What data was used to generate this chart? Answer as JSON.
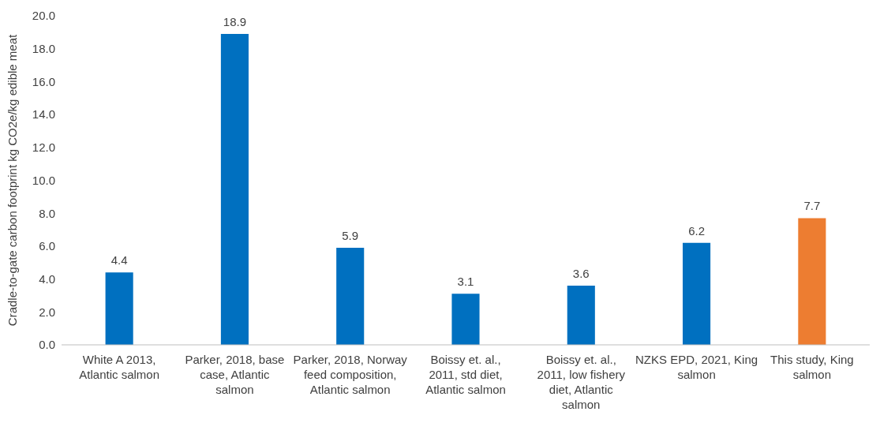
{
  "chart_data": {
    "type": "bar",
    "ylabel": "Cradle-to-gate carbon footprint kg CO2e/kg edible meat",
    "categories": [
      "White A 2013, Atlantic salmon",
      "Parker, 2018, base case, Atlantic salmon",
      "Parker, 2018, Norway feed composition, Atlantic salmon",
      "Boissy et. al., 2011, std diet, Atlantic salmon",
      "Boissy et. al., 2011, low fishery diet, Atlantic salmon",
      "NZKS EPD, 2021, King salmon",
      "This study, King salmon"
    ],
    "values": [
      4.4,
      18.9,
      5.9,
      3.1,
      3.6,
      6.2,
      7.7
    ],
    "colors": [
      "#0070c0",
      "#0070c0",
      "#0070c0",
      "#0070c0",
      "#0070c0",
      "#0070c0",
      "#ed7d31"
    ],
    "ylim": [
      0,
      20
    ],
    "yticks": [
      {
        "value": 0,
        "label": "0.0"
      },
      {
        "value": 2,
        "label": "2.0"
      },
      {
        "value": 4,
        "label": "4.0"
      },
      {
        "value": 6,
        "label": "6.0"
      },
      {
        "value": 8,
        "label": "8.0"
      },
      {
        "value": 10,
        "label": "10.0"
      },
      {
        "value": 12,
        "label": "12.0"
      },
      {
        "value": 14,
        "label": "14.0"
      },
      {
        "value": 16,
        "label": "16.0"
      },
      {
        "value": 18,
        "label": "18.0"
      },
      {
        "value": 20,
        "label": "20.0"
      }
    ],
    "grid": false,
    "data_labels": true
  }
}
